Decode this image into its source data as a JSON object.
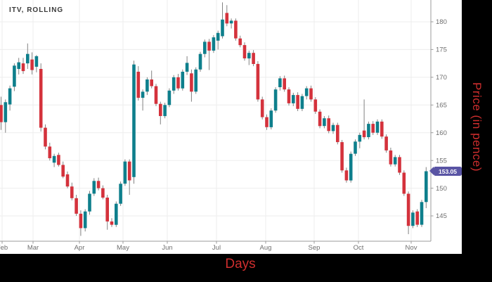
{
  "title": "ITV, ROLLING",
  "axes": {
    "x_title": "Days",
    "y_title": "Price (in pence)",
    "x_ticks": [
      "Feb",
      "Mar",
      "Apr",
      "May",
      "Jun",
      "Jul",
      "Aug",
      "Sep",
      "Oct",
      "Nov"
    ],
    "y_ticks": [
      145,
      150,
      155,
      160,
      165,
      170,
      175,
      180
    ]
  },
  "price_badge": {
    "value": "153.05",
    "color": "#5954a4"
  },
  "colors": {
    "up": "#0e7f8c",
    "down": "#d4323c",
    "wick": "#828282",
    "grid": "#ededed",
    "axis": "#9b9b9b",
    "label": "#6e6e6e",
    "title": "#3b3b3b",
    "axis_title": "#cf2e2e",
    "badge": "#5954a4",
    "frame": "#000000",
    "background": "#ffffff"
  },
  "chart_data": {
    "type": "candlestick",
    "series_name": "ITV, ROLLING",
    "x_label": "Days",
    "y_label": "Price (in pence)",
    "y_ticks": [
      145,
      150,
      155,
      160,
      165,
      170,
      175,
      180
    ],
    "y_domain": [
      140.4,
      183.9
    ],
    "x_tick_labels": [
      "Feb",
      "Mar",
      "Apr",
      "May",
      "Jun",
      "Jul",
      "Aug",
      "Sep",
      "Oct",
      "Nov"
    ],
    "month_x": [
      3,
      47,
      113,
      175,
      238,
      308,
      378,
      447,
      510,
      585
    ],
    "last_price": 153.05,
    "grid": true,
    "candles_ohlc": [
      [
        165.0,
        166.5,
        160.5,
        161.9
      ],
      [
        161.9,
        166.0,
        160.0,
        165.5
      ],
      [
        165.1,
        168.5,
        164.0,
        168.0
      ],
      [
        168.3,
        172.5,
        167.5,
        172.1
      ],
      [
        171.5,
        173.5,
        170.5,
        172.7
      ],
      [
        172.5,
        173.5,
        170.6,
        171.1
      ],
      [
        172.5,
        176.1,
        171.5,
        174.2
      ],
      [
        173.2,
        174.5,
        170.5,
        171.3
      ],
      [
        171.9,
        174.0,
        170.9,
        173.8
      ],
      [
        171.5,
        172.5,
        160.2,
        160.9
      ],
      [
        160.9,
        161.5,
        157.0,
        157.5
      ],
      [
        157.5,
        158.2,
        155.0,
        155.4
      ],
      [
        154.6,
        156.2,
        153.8,
        155.8
      ],
      [
        156.0,
        156.4,
        153.9,
        154.2
      ],
      [
        154.2,
        154.8,
        151.8,
        152.1
      ],
      [
        152.5,
        153.0,
        150.0,
        150.3
      ],
      [
        150.3,
        151.0,
        147.8,
        148.2
      ],
      [
        148.2,
        148.8,
        145.0,
        145.4
      ],
      [
        145.4,
        146.0,
        141.4,
        142.8
      ],
      [
        142.8,
        146.2,
        142.2,
        145.8
      ],
      [
        145.8,
        149.5,
        145.2,
        149.0
      ],
      [
        149.0,
        151.8,
        148.6,
        151.3
      ],
      [
        151.3,
        151.9,
        149.6,
        150.0
      ],
      [
        150.0,
        150.5,
        148.0,
        148.3
      ],
      [
        148.3,
        148.8,
        142.5,
        144.0
      ],
      [
        144.0,
        144.6,
        143.0,
        143.4
      ],
      [
        143.4,
        147.6,
        143.0,
        147.2
      ],
      [
        147.2,
        151.2,
        146.8,
        150.8
      ],
      [
        150.8,
        155.2,
        150.4,
        154.8
      ],
      [
        154.8,
        155.2,
        148.8,
        151.4
      ],
      [
        152.0,
        173.0,
        150.8,
        172.3
      ],
      [
        171.0,
        172.0,
        165.8,
        166.3
      ],
      [
        166.3,
        167.8,
        164.0,
        167.4
      ],
      [
        167.4,
        170.0,
        166.8,
        169.6
      ],
      [
        169.6,
        171.2,
        168.0,
        168.4
      ],
      [
        168.4,
        168.8,
        164.8,
        165.2
      ],
      [
        165.2,
        165.6,
        161.5,
        163.0
      ],
      [
        163.0,
        165.4,
        162.6,
        165.0
      ],
      [
        165.0,
        168.0,
        164.6,
        167.6
      ],
      [
        167.6,
        170.4,
        167.0,
        170.0
      ],
      [
        170.0,
        170.6,
        167.6,
        168.0
      ],
      [
        168.0,
        171.4,
        167.6,
        171.0
      ],
      [
        171.0,
        173.8,
        170.4,
        172.6
      ],
      [
        170.7,
        171.4,
        165.6,
        167.4
      ],
      [
        167.4,
        171.8,
        167.0,
        171.4
      ],
      [
        171.4,
        174.6,
        171.0,
        174.2
      ],
      [
        174.2,
        176.8,
        173.6,
        176.4
      ],
      [
        176.4,
        176.9,
        171.3,
        174.8
      ],
      [
        174.8,
        177.6,
        174.4,
        177.2
      ],
      [
        176.6,
        178.4,
        175.0,
        178.0
      ],
      [
        177.4,
        183.5,
        177.0,
        180.4
      ],
      [
        181.6,
        183.0,
        179.2,
        179.7
      ],
      [
        179.7,
        180.6,
        178.8,
        180.2
      ],
      [
        180.2,
        180.6,
        176.6,
        177.0
      ],
      [
        177.0,
        177.5,
        175.4,
        175.8
      ],
      [
        175.8,
        176.3,
        173.0,
        173.4
      ],
      [
        173.4,
        174.8,
        172.2,
        174.4
      ],
      [
        174.4,
        174.9,
        172.0,
        172.4
      ],
      [
        172.4,
        172.9,
        165.6,
        166.0
      ],
      [
        166.0,
        166.5,
        162.4,
        162.8
      ],
      [
        162.8,
        163.3,
        160.5,
        161.0
      ],
      [
        161.0,
        164.4,
        160.6,
        164.0
      ],
      [
        164.0,
        168.2,
        163.6,
        167.8
      ],
      [
        168.2,
        170.2,
        167.6,
        169.8
      ],
      [
        169.8,
        170.3,
        167.4,
        167.8
      ],
      [
        167.8,
        168.2,
        164.9,
        165.3
      ],
      [
        165.3,
        167.2,
        164.8,
        166.8
      ],
      [
        166.8,
        167.3,
        163.9,
        164.3
      ],
      [
        164.3,
        167.0,
        163.9,
        166.6
      ],
      [
        166.6,
        168.4,
        166.0,
        168.0
      ],
      [
        168.0,
        168.5,
        165.6,
        166.0
      ],
      [
        166.0,
        166.4,
        163.4,
        163.8
      ],
      [
        163.8,
        164.2,
        160.8,
        161.2
      ],
      [
        161.2,
        163.0,
        160.8,
        162.6
      ],
      [
        162.6,
        163.1,
        159.9,
        160.3
      ],
      [
        160.3,
        161.8,
        159.8,
        161.4
      ],
      [
        161.4,
        161.8,
        157.9,
        158.3
      ],
      [
        158.3,
        158.7,
        152.8,
        153.2
      ],
      [
        153.2,
        153.7,
        151.0,
        151.4
      ],
      [
        151.4,
        156.6,
        151.0,
        156.2
      ],
      [
        156.2,
        158.8,
        155.8,
        158.4
      ],
      [
        158.4,
        160.0,
        157.2,
        159.6
      ],
      [
        160.4,
        166.0,
        158.8,
        159.2
      ],
      [
        159.2,
        162.0,
        158.8,
        161.6
      ],
      [
        161.6,
        162.1,
        159.6,
        160.0
      ],
      [
        160.0,
        162.4,
        159.6,
        162.0
      ],
      [
        162.0,
        162.4,
        158.9,
        159.3
      ],
      [
        159.3,
        159.7,
        156.4,
        156.8
      ],
      [
        156.8,
        157.3,
        153.9,
        154.3
      ],
      [
        154.3,
        156.0,
        153.9,
        155.6
      ],
      [
        155.6,
        156.0,
        152.4,
        152.8
      ],
      [
        152.8,
        153.2,
        148.6,
        149.0
      ],
      [
        149.0,
        149.4,
        141.7,
        143.2
      ],
      [
        143.2,
        146.0,
        142.8,
        145.6
      ],
      [
        145.8,
        146.2,
        143.0,
        143.4
      ],
      [
        143.4,
        147.9,
        143.0,
        147.5
      ],
      [
        147.5,
        153.8,
        146.4,
        153.05
      ]
    ]
  }
}
